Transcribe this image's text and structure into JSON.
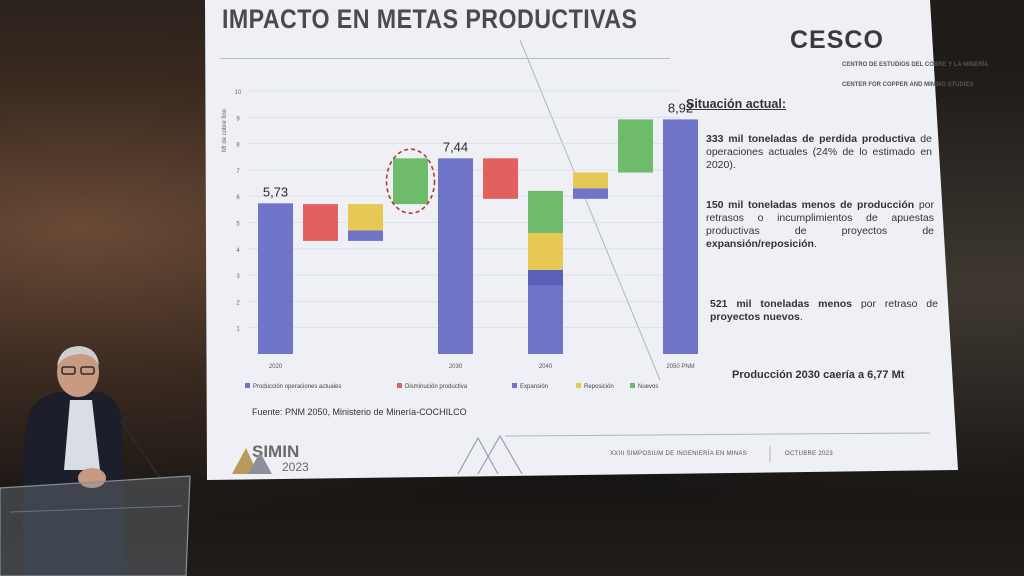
{
  "slide": {
    "title": "IMPACTO EN METAS PRODUCTIVAS",
    "brand": "CESCO",
    "brand_sub_es": "CENTRO DE ESTUDIOS DEL COBRE Y LA MINERÍA",
    "brand_sub_en": "CENTER FOR COPPER AND MINING STUDIES",
    "situacion_heading": "Situación actual:",
    "bullets": [
      {
        "bold": "333 mil toneladas de perdida productiva",
        "rest": " de operaciones actuales (24% de lo estimado en 2020)."
      },
      {
        "bold": "150 mil toneladas menos de producción",
        "rest": " por retrasos o incumplimientos de apuestas productivas de proyectos de ",
        "bold2": "expansión/reposición",
        "rest2": "."
      },
      {
        "bold": "521 mil toneladas menos",
        "rest": " por retraso de ",
        "bold2": "proyectos nuevos",
        "rest2": "."
      }
    ],
    "conclusion": "Producción 2030 caería a 6,77 Mt",
    "source": "Fuente: PNM 2050, Ministerio de Minería-COCHILCO",
    "footer_text": "XXIII SIMPOSIUM DE INGENIERÍA EN MINAS",
    "footer_date": "OCTUBRE 2023",
    "event_logo": "SIMIN",
    "event_year": "2023"
  },
  "chart_data": {
    "type": "bar",
    "subtype": "waterfall",
    "ylabel": "Mt de cobre fino",
    "ylim": [
      0,
      10
    ],
    "yticks": [
      "1",
      "2",
      "3",
      "4",
      "5",
      "6",
      "7",
      "8",
      "9",
      "10"
    ],
    "x_labels": [
      "2020",
      "2030",
      "2040",
      "2050 PNM"
    ],
    "value_labels": [
      "5,73",
      "7,44",
      "8,92"
    ],
    "legend": [
      {
        "label": "Producción operaciones actuales",
        "color": "#6f74c8"
      },
      {
        "label": "Disminución productiva",
        "color": "#e26060"
      },
      {
        "label": "Expansión",
        "color": "#6f74c8"
      },
      {
        "label": "Reposición",
        "color": "#e6c855"
      },
      {
        "label": "Nuevos",
        "color": "#6fbb6c"
      }
    ],
    "bars": [
      {
        "segments": [
          {
            "bottom": 0,
            "top": 5.73,
            "color": "#6f74c8"
          }
        ]
      },
      {
        "segments": [
          {
            "bottom": 4.3,
            "top": 5.7,
            "color": "#e26060"
          }
        ]
      },
      {
        "segments": [
          {
            "bottom": 4.3,
            "top": 4.7,
            "color": "#6f74c8"
          },
          {
            "bottom": 4.7,
            "top": 5.7,
            "color": "#e6c855"
          }
        ]
      },
      {
        "segments": [
          {
            "bottom": 5.7,
            "top": 7.44,
            "color": "#6fbb6c"
          }
        ],
        "highlight": true
      },
      {
        "segments": [
          {
            "bottom": 0,
            "top": 7.44,
            "color": "#6f74c8"
          }
        ]
      },
      {
        "segments": [
          {
            "bottom": 5.9,
            "top": 7.44,
            "color": "#e26060"
          }
        ]
      },
      {
        "segments": [
          {
            "bottom": 0,
            "top": 2.6,
            "color": "#6f74c8"
          },
          {
            "bottom": 2.6,
            "top": 3.2,
            "color": "#5a5fb8"
          },
          {
            "bottom": 3.2,
            "top": 4.6,
            "color": "#e6c855"
          },
          {
            "bottom": 4.6,
            "top": 6.2,
            "color": "#6fbb6c"
          }
        ]
      },
      {
        "segments": [
          {
            "bottom": 5.9,
            "top": 6.3,
            "color": "#6f74c8"
          },
          {
            "bottom": 6.3,
            "top": 6.9,
            "color": "#e6c855"
          }
        ]
      },
      {
        "segments": [
          {
            "bottom": 6.9,
            "top": 8.92,
            "color": "#6fbb6c"
          }
        ]
      },
      {
        "segments": [
          {
            "bottom": 0,
            "top": 8.92,
            "color": "#6f74c8"
          }
        ]
      }
    ]
  }
}
